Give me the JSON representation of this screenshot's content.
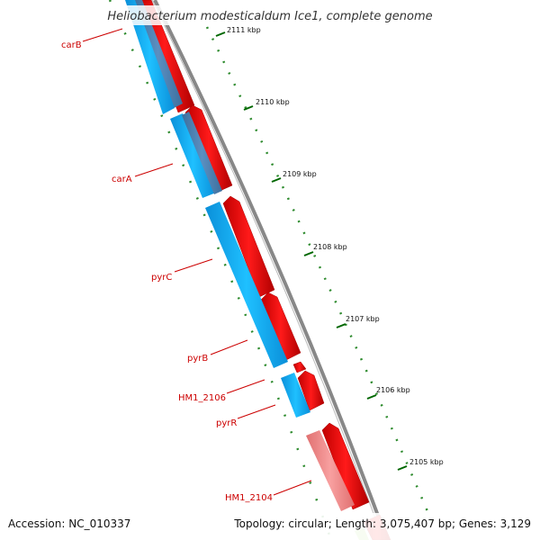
{
  "title": "Heliobacterium modesticaldum Ice1, complete genome",
  "footer": {
    "accession": "Accession: NC_010337",
    "summary": "Topology: circular; Length: 3,075,407 bp; Genes: 3,129"
  },
  "ruler": {
    "labels": [
      "2111 kbp",
      "2110 kbp",
      "2109 kbp",
      "2108 kbp",
      "2107 kbp",
      "2106 kbp",
      "2105 kbp"
    ]
  },
  "gene_labels": {
    "carB": "carB",
    "carA": "carA",
    "pyrC": "pyrC",
    "pyrB": "pyrB",
    "HM1_2106": "HM1_2106",
    "pyrR": "pyrR",
    "HM1_2104": "HM1_2104"
  },
  "colors": {
    "forward_gene": "#ff0000",
    "reverse_cog": "#00aaff",
    "reverse_cog_dark": "#4a7fb0",
    "faded_gene": "#f28a8a",
    "backbone": "#888888",
    "ruler_tick": "#006600",
    "label": "#cc0000"
  }
}
